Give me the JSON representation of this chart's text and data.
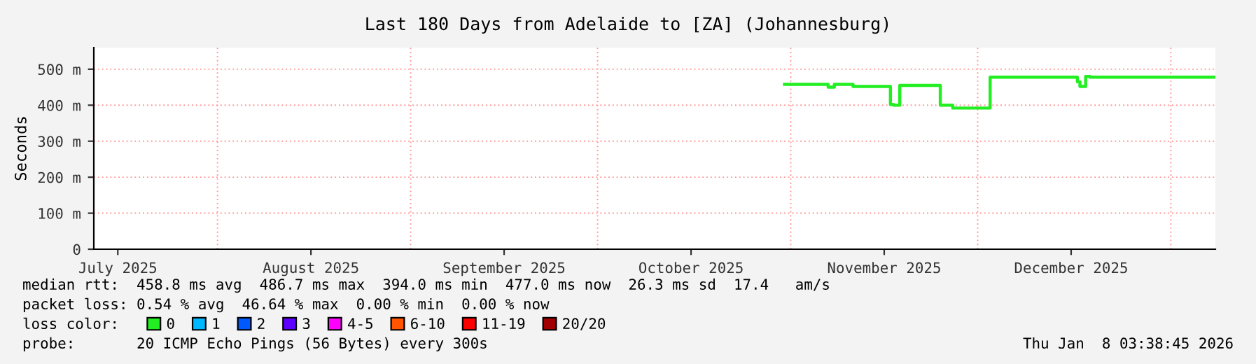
{
  "chart_data": {
    "type": "step",
    "title": "Last 180 Days from Adelaide to [ZA] (Johannesburg)",
    "ylabel": "Seconds",
    "x": [
      "2025-10-31",
      "2025-11-07",
      "2025-11-08",
      "2025-11-11",
      "2025-11-17",
      "2025-11-17T12:00",
      "2025-11-18T12:00",
      "2025-11-25",
      "2025-11-27",
      "2025-12-03",
      "2025-12-17",
      "2025-12-17T10:00",
      "2025-12-18T08:00",
      "2025-12-19",
      "2026-01-08T03:00"
    ],
    "series": [
      {
        "name": "0",
        "color": "#22ee22",
        "values": [
          458,
          450,
          458,
          452,
          402,
          400,
          455,
          400,
          392,
          478,
          465,
          452,
          480,
          478,
          478
        ]
      },
      {
        "name": "1",
        "color": "#00b8ff",
        "values": [
          null,
          null,
          null,
          null,
          null,
          null,
          null,
          null,
          null,
          null,
          null,
          null,
          null,
          null,
          null
        ]
      },
      {
        "name": "2",
        "color": "#0059ff",
        "values": [
          null,
          null,
          null,
          null,
          null,
          null,
          null,
          null,
          null,
          null,
          null,
          null,
          null,
          null,
          null
        ]
      },
      {
        "name": "3",
        "color": "#5e00ff",
        "values": [
          null,
          null,
          null,
          null,
          null,
          null,
          null,
          null,
          null,
          null,
          null,
          null,
          null,
          null,
          null
        ]
      },
      {
        "name": "4-5",
        "color": "#ff00ff",
        "values": [
          null,
          null,
          null,
          null,
          null,
          null,
          null,
          null,
          null,
          null,
          null,
          null,
          null,
          null,
          null
        ]
      },
      {
        "name": "6-10",
        "color": "#ff5500",
        "values": [
          null,
          null,
          null,
          null,
          null,
          null,
          null,
          null,
          null,
          null,
          null,
          null,
          null,
          null,
          null
        ]
      },
      {
        "name": "11-19",
        "color": "#ff0000",
        "values": [
          null,
          null,
          null,
          null,
          null,
          null,
          null,
          null,
          null,
          null,
          null,
          null,
          null,
          null,
          null
        ]
      },
      {
        "name": "20/20",
        "color": "#a10000",
        "values": [
          null,
          null,
          null,
          null,
          null,
          null,
          null,
          null,
          null,
          null,
          null,
          null,
          null,
          null,
          null
        ]
      }
    ],
    "legend_title": "loss color:",
    "legend": "bottom",
    "grid": true,
    "xlim": [
      "2025-07-12T03:38",
      "2026-01-08T03:38"
    ],
    "xticks": [
      {
        "value": "2025-07-16",
        "label": "July 2025"
      },
      {
        "value": "2025-08-01",
        "label": null
      },
      {
        "value": "2025-08-16",
        "label": "August 2025"
      },
      {
        "value": "2025-09-01",
        "label": null
      },
      {
        "value": "2025-09-16",
        "label": "September 2025"
      },
      {
        "value": "2025-10-01",
        "label": null
      },
      {
        "value": "2025-10-16",
        "label": "October 2025"
      },
      {
        "value": "2025-11-01",
        "label": null
      },
      {
        "value": "2025-11-16",
        "label": "November 2025"
      },
      {
        "value": "2025-12-01",
        "label": null
      },
      {
        "value": "2025-12-16",
        "label": "December 2025"
      },
      {
        "value": "2026-01-01",
        "label": null
      }
    ],
    "ylim": [
      0,
      560
    ],
    "yticks": [
      0,
      {
        "value": 100,
        "label": "100 m"
      },
      {
        "value": 200,
        "label": "200 m"
      },
      {
        "value": 300,
        "label": "300 m"
      },
      {
        "value": 400,
        "label": "400 m"
      },
      {
        "value": 500,
        "label": "500 m"
      }
    ],
    "annotations": [
      "median rtt:  458.8 ms avg  486.7 ms max  394.0 ms min  477.0 ms now  26.3 ms sd  17.4   am/s",
      "packet loss: 0.54 % avg  46.64 % max  0.00 % min  0.00 % now",
      "probe:       20 ICMP Echo Pings (56 Bytes) every 300s",
      "Thu Jan  8 03:38:45 2026"
    ]
  }
}
